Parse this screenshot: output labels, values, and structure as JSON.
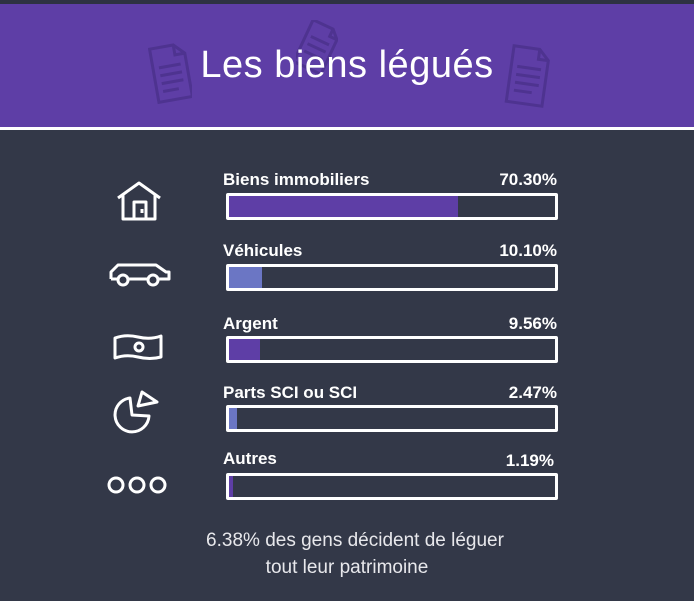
{
  "title": "Les biens légués",
  "chart_data": {
    "type": "bar",
    "orientation": "horizontal",
    "categories": [
      "Biens immobiliers",
      "Véhicules",
      "Argent",
      "Parts SCI ou SCI",
      "Autres"
    ],
    "values": [
      70.3,
      10.1,
      9.56,
      2.47,
      1.19
    ],
    "value_labels": [
      "70.30%",
      "10.10%",
      "9.56%",
      "2.47%",
      "1.19%"
    ],
    "xlim": [
      0,
      100
    ],
    "title": "Les biens légués"
  },
  "rows": [
    {
      "icon": "house-icon",
      "label": "Biens immobiliers",
      "pct": "70.30%",
      "color": "#5e3ea6"
    },
    {
      "icon": "car-icon",
      "label": "Véhicules",
      "pct": "10.10%",
      "color": "#6b76c4"
    },
    {
      "icon": "banknote-icon",
      "label": "Argent",
      "pct": "9.56%",
      "color": "#5e3ea6"
    },
    {
      "icon": "pie-chart-icon",
      "label": "Parts SCI ou SCI",
      "pct": "2.47%",
      "color": "#6b76c4"
    },
    {
      "icon": "three-dots-icon",
      "label": "Autres",
      "pct": "1.19%",
      "color": "#5e3ea6"
    }
  ],
  "footer": {
    "line1": "6.38% des gens décident de léguer",
    "line2": "tout leur patrimoine"
  },
  "colors": {
    "background": "#333848",
    "header": "#5e3ea6",
    "accent_purple": "#5e3ea6",
    "accent_blue": "#6b76c4"
  }
}
